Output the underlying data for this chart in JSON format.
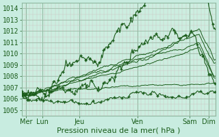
{
  "xlabel": "Pression niveau de la mer( hPa )",
  "bg_color": "#c8ece0",
  "plot_bg_color": "#cceee0",
  "grid_major_color": "#90b8a0",
  "grid_minor_color": "#b8d8c8",
  "grid_minor_pink": "#d0c0c0",
  "line_color": "#1a5c1a",
  "ylim": [
    1004.5,
    1014.5
  ],
  "yticks": [
    1005,
    1006,
    1007,
    1008,
    1009,
    1010,
    1011,
    1012,
    1013,
    1014
  ],
  "xtick_labels": [
    "Mer",
    "Lun",
    "Jeu",
    "Ven",
    "Sam",
    "Dim"
  ],
  "xtick_positions": [
    0.12,
    0.55,
    1.55,
    3.1,
    4.5,
    5.0
  ],
  "xlim": [
    0,
    5.2
  ],
  "xlabel_fontsize": 8,
  "tick_fontsize": 7
}
